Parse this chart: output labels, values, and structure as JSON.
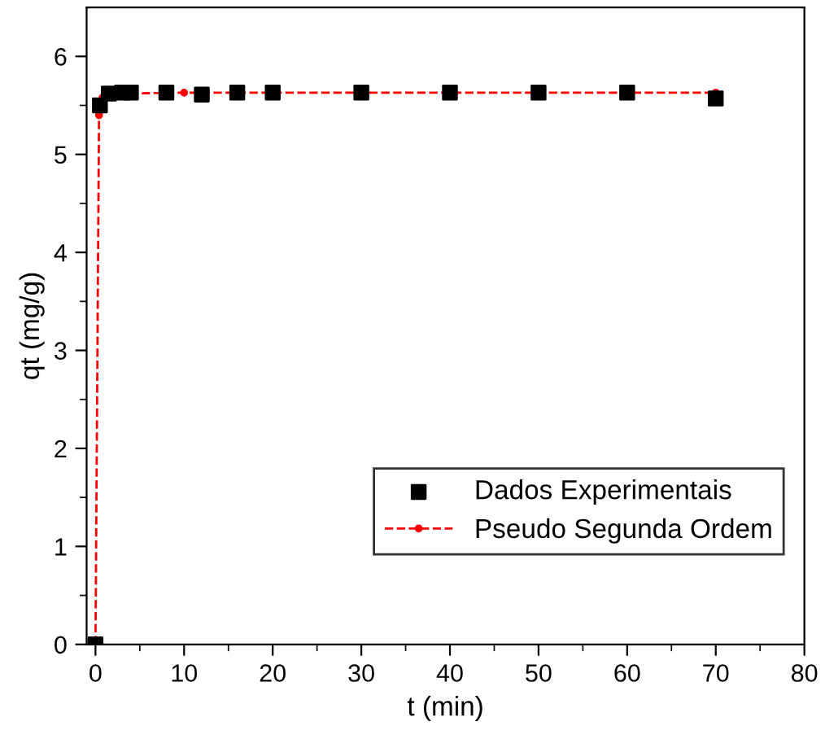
{
  "chart_data": {
    "type": "scatter",
    "xlabel": "t (min)",
    "ylabel": "qt (mg/g)",
    "xlim": [
      -1,
      80
    ],
    "ylim": [
      0,
      6.5
    ],
    "xticks": [
      0,
      10,
      20,
      30,
      40,
      50,
      60,
      70,
      80
    ],
    "yticks": [
      0,
      1,
      2,
      3,
      4,
      5,
      6
    ],
    "grid": false,
    "legend": "bottom right",
    "series": [
      {
        "name": "Dados Experimentais",
        "color": "#000000",
        "marker": "square",
        "x": [
          0,
          0.5,
          1.5,
          3,
          4,
          8,
          12,
          16,
          20,
          30,
          40,
          50,
          60,
          70
        ],
        "values": [
          0,
          5.5,
          5.62,
          5.63,
          5.63,
          5.63,
          5.61,
          5.63,
          5.63,
          5.63,
          5.63,
          5.63,
          5.63,
          5.57
        ]
      },
      {
        "name": "Pseudo Segunda Ordem",
        "type": "line",
        "color": "#ff0000",
        "marker": "circle",
        "line_style": "dashed",
        "x": [
          0,
          0.4,
          0.5,
          0.8,
          1.5,
          3,
          10,
          70
        ],
        "values": [
          0,
          5.4,
          5.5,
          5.58,
          5.61,
          5.62,
          5.63,
          5.63
        ]
      }
    ]
  }
}
